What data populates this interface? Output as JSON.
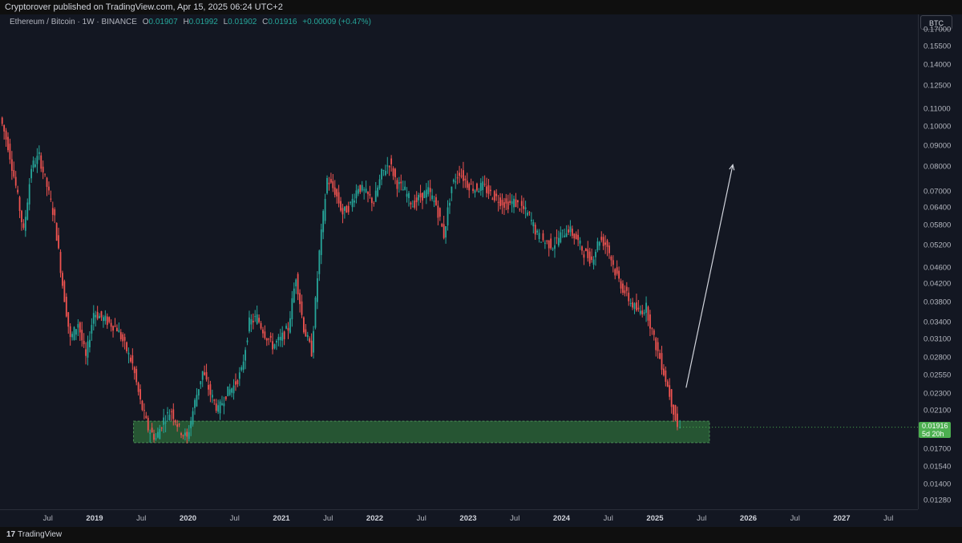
{
  "header": {
    "publish_line": "Cryptorover published on TradingView.com, Apr 15, 2025 06:24 UTC+2"
  },
  "legend": {
    "symbol": "Ethereum / Bitcoin · 1W · BINANCE",
    "o_label": "O",
    "o": "0.01907",
    "h_label": "H",
    "h": "0.01992",
    "l_label": "L",
    "l": "0.01902",
    "c_label": "C",
    "c": "0.01916",
    "change": "+0.00009 (+0.47%)"
  },
  "currency": "BTC",
  "last_price": {
    "value": "0.01916",
    "countdown": "5d 20h"
  },
  "footer": {
    "logo_mark": "17",
    "logo_text": "TradingView"
  },
  "colors": {
    "up": "#26a69a",
    "down": "#ef5350",
    "zone": "#2e6b3a",
    "tag": "#4caf50"
  },
  "chart_data": {
    "type": "candlestick",
    "series": [
      {
        "name": "Ethereum / Bitcoin",
        "y_scale": "log"
      }
    ],
    "y_ticks": [
      "0.17000",
      "0.15500",
      "0.14000",
      "0.12500",
      "0.11000",
      "0.10000",
      "0.09000",
      "0.08000",
      "0.07000",
      "0.06400",
      "0.05800",
      "0.05200",
      "0.04600",
      "0.04200",
      "0.03800",
      "0.03400",
      "0.03100",
      "0.02800",
      "0.02550",
      "0.02300",
      "0.02100",
      "0.01900",
      "0.01700",
      "0.01540",
      "0.01400",
      "0.01280"
    ],
    "x_ticks": [
      "Jul",
      "2019",
      "Jul",
      "2020",
      "Jul",
      "2021",
      "Jul",
      "2022",
      "Jul",
      "2023",
      "Jul",
      "2024",
      "Jul",
      "2025",
      "Jul",
      "2026",
      "Jul",
      "2027",
      "Jul"
    ],
    "ylim": [
      0.0122,
      0.185
    ],
    "support_zone": {
      "low": 0.0176,
      "high": 0.0198,
      "from": "2019-06",
      "to": "2025-08"
    },
    "projection_arrow": {
      "from": {
        "date": "2025-05",
        "price": 0.0238
      },
      "to": {
        "date": "2025-11",
        "price": 0.081
      }
    },
    "path": [
      [
        "2018-01",
        0.105
      ],
      [
        "2018-02",
        0.09
      ],
      [
        "2018-03",
        0.072
      ],
      [
        "2018-04",
        0.056
      ],
      [
        "2018-05",
        0.08
      ],
      [
        "2018-06",
        0.085
      ],
      [
        "2018-07",
        0.072
      ],
      [
        "2018-08",
        0.06
      ],
      [
        "2018-09",
        0.042
      ],
      [
        "2018-10",
        0.031
      ],
      [
        "2018-11",
        0.034
      ],
      [
        "2018-12",
        0.028
      ],
      [
        "2019-01",
        0.036
      ],
      [
        "2019-02",
        0.035
      ],
      [
        "2019-03",
        0.034
      ],
      [
        "2019-04",
        0.033
      ],
      [
        "2019-05",
        0.03
      ],
      [
        "2019-06",
        0.027
      ],
      [
        "2019-07",
        0.022
      ],
      [
        "2019-08",
        0.019
      ],
      [
        "2019-09",
        0.018
      ],
      [
        "2019-10",
        0.02
      ],
      [
        "2019-11",
        0.021
      ],
      [
        "2019-12",
        0.019
      ],
      [
        "2020-01",
        0.018
      ],
      [
        "2020-02",
        0.022
      ],
      [
        "2020-03",
        0.026
      ],
      [
        "2020-04",
        0.023
      ],
      [
        "2020-05",
        0.021
      ],
      [
        "2020-06",
        0.023
      ],
      [
        "2020-07",
        0.024
      ],
      [
        "2020-08",
        0.026
      ],
      [
        "2020-09",
        0.034
      ],
      [
        "2020-10",
        0.035
      ],
      [
        "2020-11",
        0.032
      ],
      [
        "2020-12",
        0.03
      ],
      [
        "2021-01",
        0.031
      ],
      [
        "2021-02",
        0.033
      ],
      [
        "2021-03",
        0.044
      ],
      [
        "2021-04",
        0.033
      ],
      [
        "2021-05",
        0.029
      ],
      [
        "2021-06",
        0.05
      ],
      [
        "2021-07",
        0.075
      ],
      [
        "2021-08",
        0.07
      ],
      [
        "2021-09",
        0.062
      ],
      [
        "2021-10",
        0.065
      ],
      [
        "2021-11",
        0.072
      ],
      [
        "2021-12",
        0.069
      ],
      [
        "2022-01",
        0.066
      ],
      [
        "2022-02",
        0.077
      ],
      [
        "2022-03",
        0.082
      ],
      [
        "2022-04",
        0.073
      ],
      [
        "2022-05",
        0.07
      ],
      [
        "2022-06",
        0.065
      ],
      [
        "2022-07",
        0.068
      ],
      [
        "2022-08",
        0.07
      ],
      [
        "2022-09",
        0.065
      ],
      [
        "2022-10",
        0.055
      ],
      [
        "2022-11",
        0.072
      ],
      [
        "2022-12",
        0.078
      ],
      [
        "2023-01",
        0.073
      ],
      [
        "2023-02",
        0.071
      ],
      [
        "2023-03",
        0.072
      ],
      [
        "2023-04",
        0.069
      ],
      [
        "2023-05",
        0.067
      ],
      [
        "2023-06",
        0.065
      ],
      [
        "2023-07",
        0.066
      ],
      [
        "2023-08",
        0.064
      ],
      [
        "2023-09",
        0.061
      ],
      [
        "2023-10",
        0.055
      ],
      [
        "2023-11",
        0.053
      ],
      [
        "2023-12",
        0.052
      ],
      [
        "2024-01",
        0.055
      ],
      [
        "2024-02",
        0.057
      ],
      [
        "2024-03",
        0.054
      ],
      [
        "2024-04",
        0.05
      ],
      [
        "2024-05",
        0.048
      ],
      [
        "2024-06",
        0.054
      ],
      [
        "2024-07",
        0.052
      ],
      [
        "2024-08",
        0.045
      ],
      [
        "2024-09",
        0.041
      ],
      [
        "2024-10",
        0.038
      ],
      [
        "2024-11",
        0.036
      ],
      [
        "2024-12",
        0.037
      ],
      [
        "2025-01",
        0.031
      ],
      [
        "2025-02",
        0.027
      ],
      [
        "2025-03",
        0.023
      ],
      [
        "2025-04",
        0.0192
      ]
    ],
    "ohlc_last": {
      "open": 0.01907,
      "high": 0.01992,
      "low": 0.01902,
      "close": 0.01916
    }
  }
}
